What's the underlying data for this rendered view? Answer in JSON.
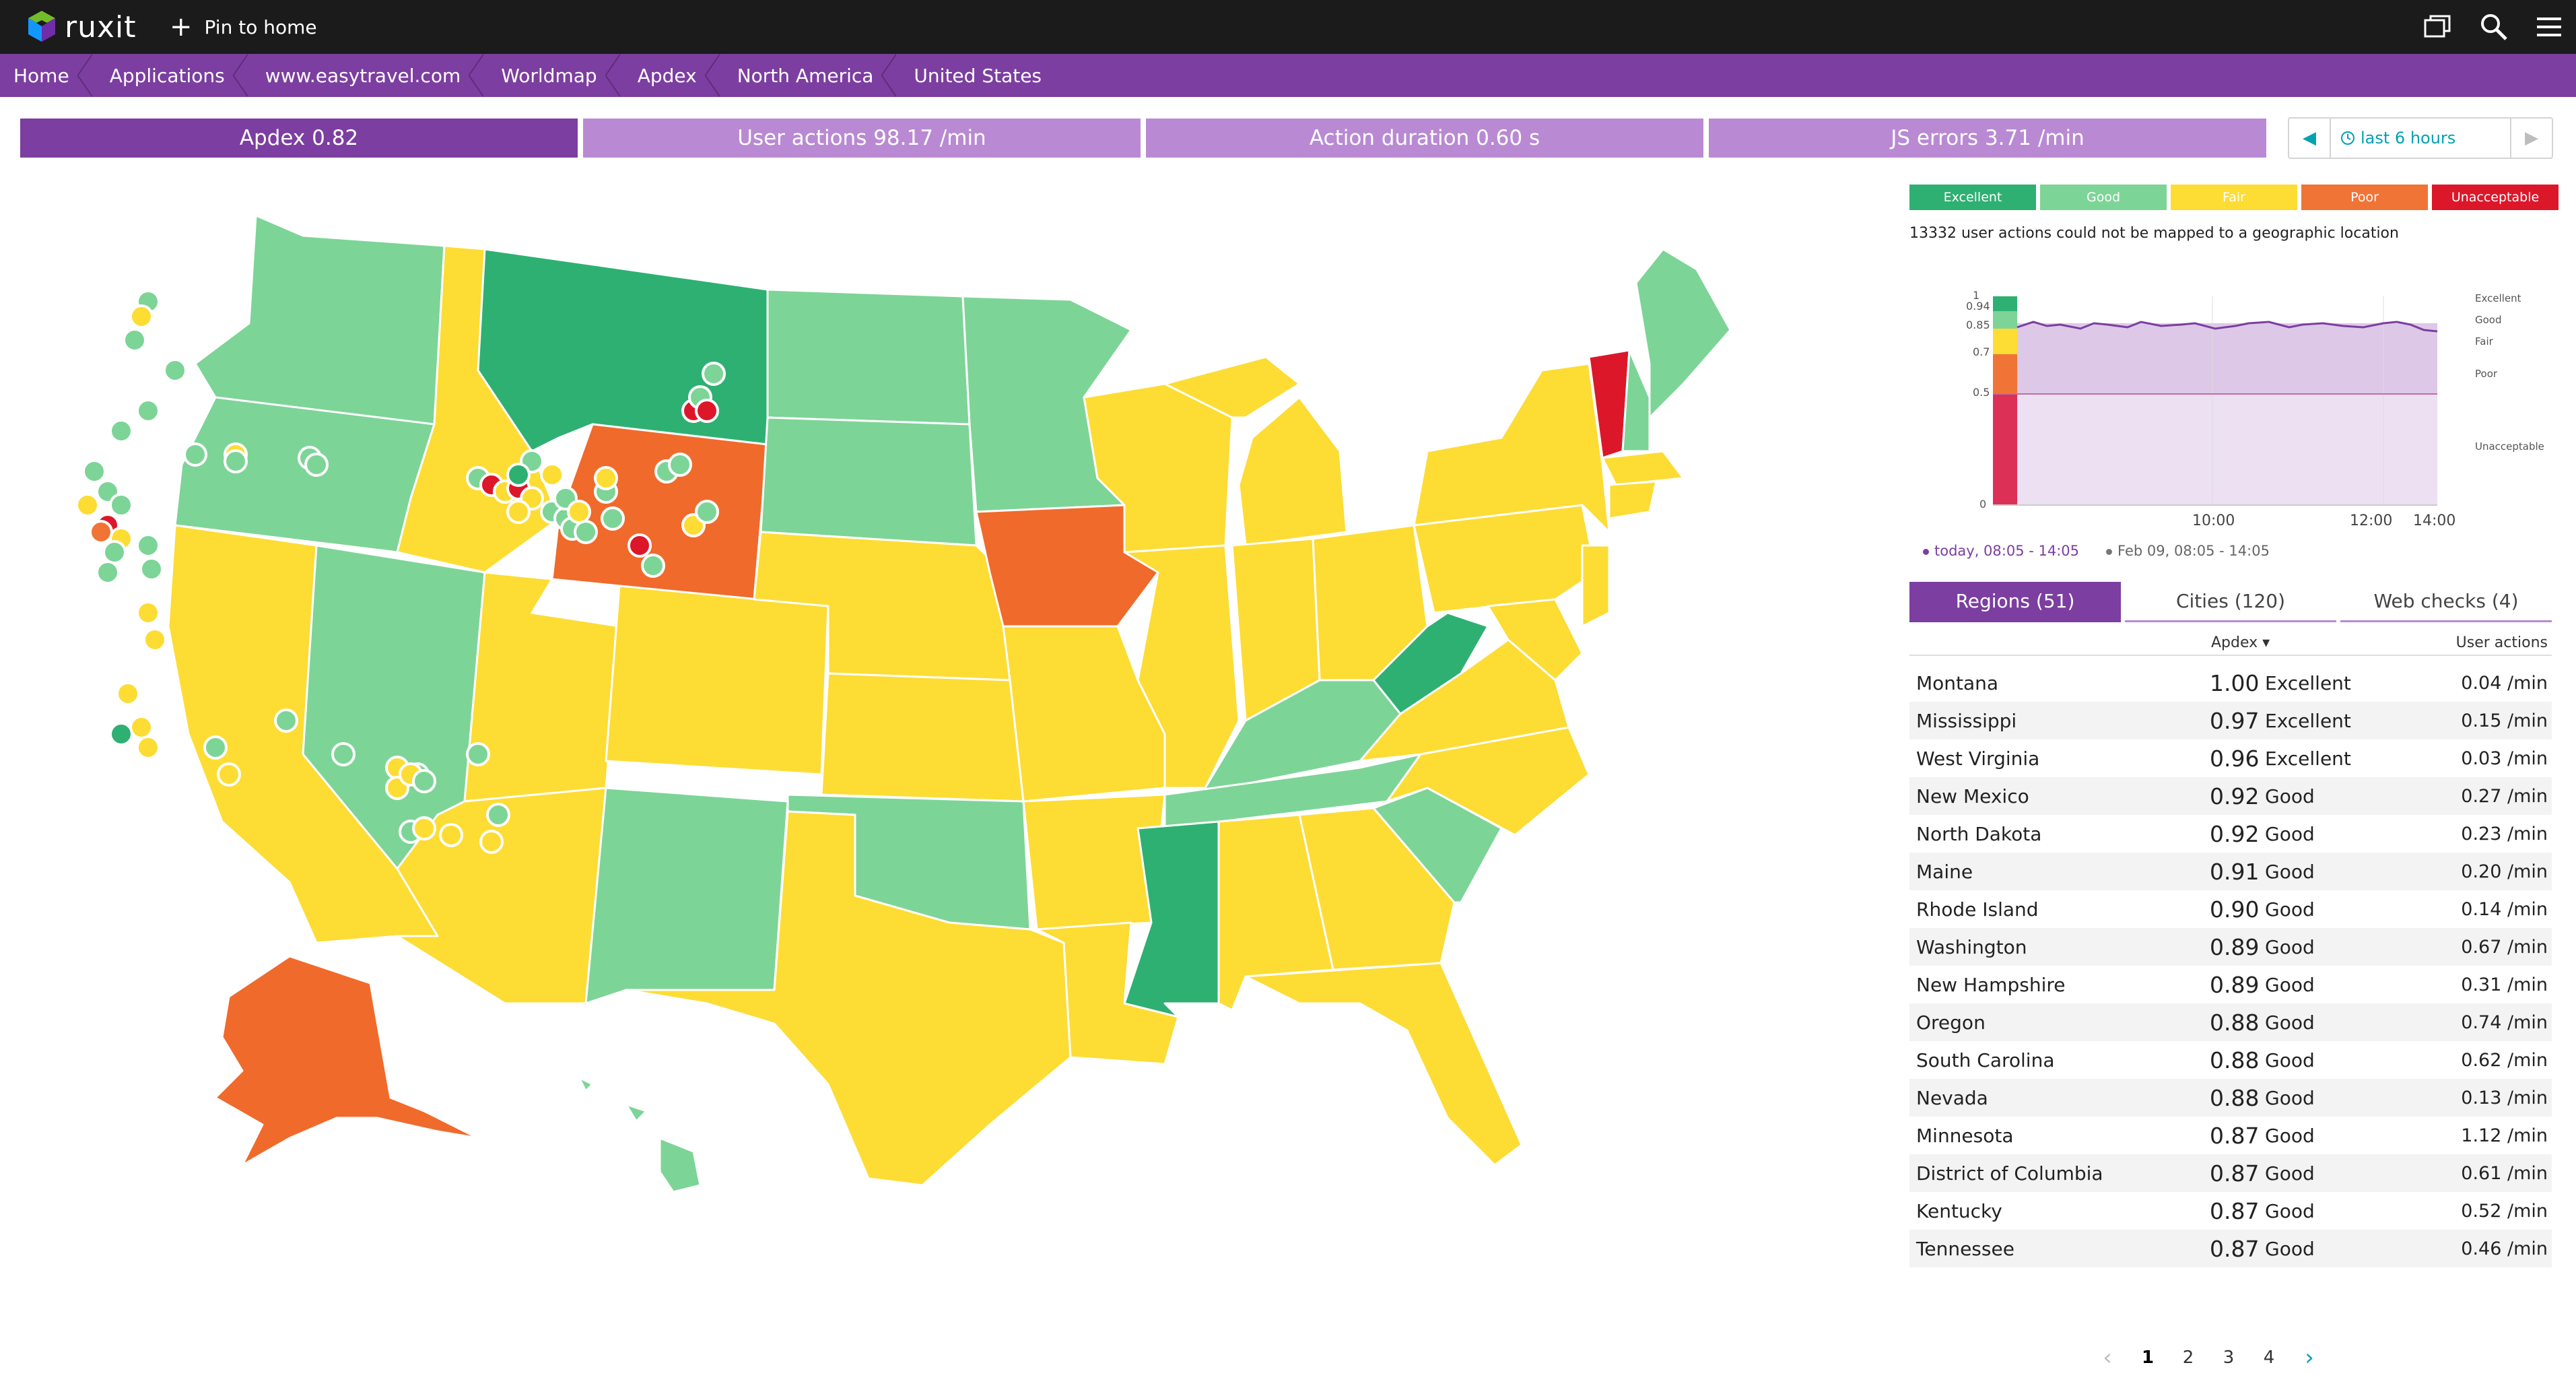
{
  "app": {
    "logo_text": "ruxit",
    "pin_label": "Pin to home"
  },
  "icons": [
    "cube-logo-icon",
    "plus-icon",
    "windows-icon",
    "search-icon",
    "hamburger-menu-icon",
    "clock-icon",
    "chevron-left-icon",
    "chevron-right-icon"
  ],
  "breadcrumb": [
    "Home",
    "Applications",
    "www.easytravel.com",
    "Worldmap",
    "Apdex",
    "North America",
    "United States"
  ],
  "metrics": [
    {
      "label": "Apdex 0.82",
      "active": true
    },
    {
      "label": "User actions 98.17 /min",
      "active": false
    },
    {
      "label": "Action duration 0.60 s",
      "active": false
    },
    {
      "label": "JS errors 3.71 /min",
      "active": false
    }
  ],
  "timeframe": {
    "label": "last 6 hours"
  },
  "legend": [
    {
      "label": "Excellent",
      "color": "#2eb073"
    },
    {
      "label": "Good",
      "color": "#7dd497"
    },
    {
      "label": "Fair",
      "color": "#fddc34"
    },
    {
      "label": "Poor",
      "color": "#f07436"
    },
    {
      "label": "Unacceptable",
      "color": "#dc172a"
    }
  ],
  "unmapped_note": "13332 user actions could not be mapped to a geographic location",
  "mini_chart": {
    "type": "line",
    "y_ticks": [
      "1",
      "0.94",
      "0.85",
      "0.7",
      "0.5",
      "0"
    ],
    "x_ticks": [
      "10:00",
      "12:00",
      "14:00"
    ],
    "band_labels": [
      "Excellent",
      "Good",
      "Fair",
      "Poor",
      "Unacceptable"
    ],
    "series": [
      {
        "name": "today, 08:05 - 14:05",
        "color": "#7c3ea0"
      },
      {
        "name": "Feb 09, 08:05 - 14:05",
        "color": "#777777"
      }
    ]
  },
  "region_tabs": [
    "Regions (51)",
    "Cities (120)",
    "Web checks (4)"
  ],
  "table_header": {
    "apdex": "Apdex ▾",
    "user_actions": "User actions"
  },
  "regions": [
    {
      "name": "Montana",
      "apdex": "1.00",
      "rating": "Excellent",
      "ua": "0.04 /min"
    },
    {
      "name": "Mississippi",
      "apdex": "0.97",
      "rating": "Excellent",
      "ua": "0.15 /min"
    },
    {
      "name": "West Virginia",
      "apdex": "0.96",
      "rating": "Excellent",
      "ua": "0.03 /min"
    },
    {
      "name": "New Mexico",
      "apdex": "0.92",
      "rating": "Good",
      "ua": "0.27 /min"
    },
    {
      "name": "North Dakota",
      "apdex": "0.92",
      "rating": "Good",
      "ua": "0.23 /min"
    },
    {
      "name": "Maine",
      "apdex": "0.91",
      "rating": "Good",
      "ua": "0.20 /min"
    },
    {
      "name": "Rhode Island",
      "apdex": "0.90",
      "rating": "Good",
      "ua": "0.14 /min"
    },
    {
      "name": "Washington",
      "apdex": "0.89",
      "rating": "Good",
      "ua": "0.67 /min"
    },
    {
      "name": "New Hampshire",
      "apdex": "0.89",
      "rating": "Good",
      "ua": "0.31 /min"
    },
    {
      "name": "Oregon",
      "apdex": "0.88",
      "rating": "Good",
      "ua": "0.74 /min"
    },
    {
      "name": "South Carolina",
      "apdex": "0.88",
      "rating": "Good",
      "ua": "0.62 /min"
    },
    {
      "name": "Nevada",
      "apdex": "0.88",
      "rating": "Good",
      "ua": "0.13 /min"
    },
    {
      "name": "Minnesota",
      "apdex": "0.87",
      "rating": "Good",
      "ua": "1.12 /min"
    },
    {
      "name": "District of Columbia",
      "apdex": "0.87",
      "rating": "Good",
      "ua": "0.61 /min"
    },
    {
      "name": "Kentucky",
      "apdex": "0.87",
      "rating": "Good",
      "ua": "0.52 /min"
    },
    {
      "name": "Tennessee",
      "apdex": "0.87",
      "rating": "Good",
      "ua": "0.46 /min"
    }
  ],
  "pagination": {
    "pages": [
      "1",
      "2",
      "3",
      "4"
    ],
    "current": "1"
  }
}
